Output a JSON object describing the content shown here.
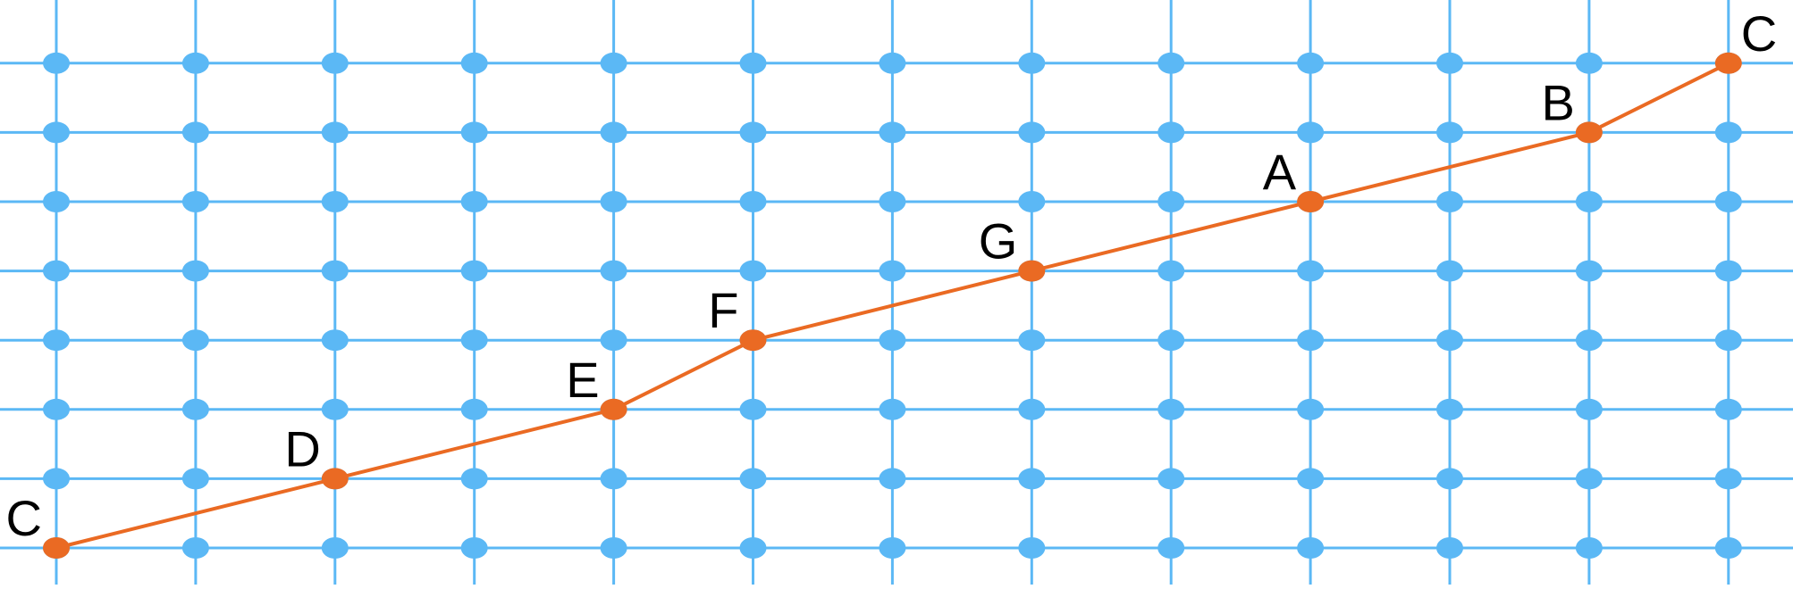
{
  "lattice": {
    "columns": 13,
    "rows": 8,
    "grid_color": "#5BB8F5",
    "node_color": "#5BB8F5"
  },
  "path": {
    "color": "#EA6A23",
    "points": [
      {
        "label": "C",
        "col": 0,
        "row": 0
      },
      {
        "label": "D",
        "col": 2,
        "row": 1
      },
      {
        "label": "E",
        "col": 4,
        "row": 2
      },
      {
        "label": "F",
        "col": 5,
        "row": 3
      },
      {
        "label": "G",
        "col": 7,
        "row": 4
      },
      {
        "label": "A",
        "col": 9,
        "row": 5
      },
      {
        "label": "B",
        "col": 11,
        "row": 6
      },
      {
        "label": "C",
        "col": 12,
        "row": 7
      }
    ]
  }
}
